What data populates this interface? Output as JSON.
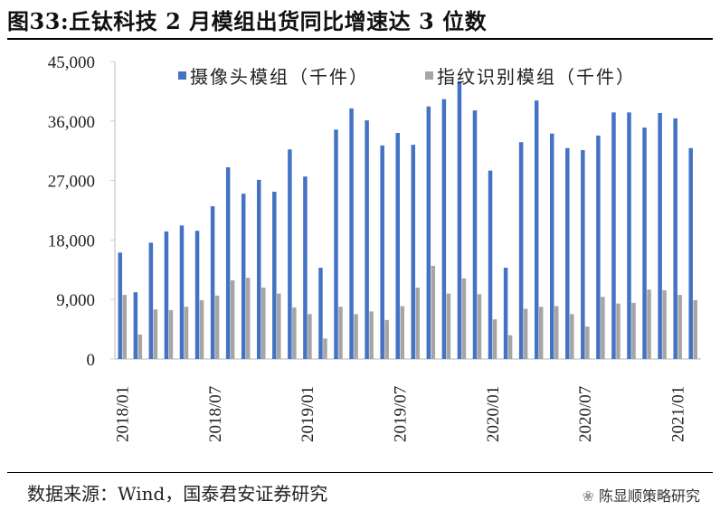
{
  "title": "图33:丘钛科技 2 月模组出货同比增速达 3 位数",
  "source": "数据来源：Wind，国泰君安证券研究",
  "watermark": "陈显顺策略研究",
  "chart_data": {
    "type": "bar",
    "title": "",
    "xlabel": "",
    "ylabel": "",
    "ylim": [
      0,
      45000
    ],
    "yticks": [
      "0",
      "9,000",
      "18,000",
      "27,000",
      "36,000",
      "45,000"
    ],
    "ytick_values": [
      0,
      9000,
      18000,
      27000,
      36000,
      45000
    ],
    "xtick_labels": [
      "2018/01",
      "2018/07",
      "2019/01",
      "2019/07",
      "2020/01",
      "2020/07",
      "2021/01"
    ],
    "legend_position": "top",
    "categories": [
      "2018/01",
      "2018/02",
      "2018/03",
      "2018/04",
      "2018/05",
      "2018/06",
      "2018/07",
      "2018/08",
      "2018/09",
      "2018/10",
      "2018/11",
      "2018/12",
      "2019/01",
      "2019/02",
      "2019/03",
      "2019/04",
      "2019/05",
      "2019/06",
      "2019/07",
      "2019/08",
      "2019/09",
      "2019/10",
      "2019/11",
      "2019/12",
      "2020/01",
      "2020/02",
      "2020/03",
      "2020/04",
      "2020/05",
      "2020/06",
      "2020/07",
      "2020/08",
      "2020/09",
      "2020/10",
      "2020/11",
      "2020/12",
      "2021/01",
      "2021/02"
    ],
    "series": [
      {
        "name": "摄像头模组（千件）",
        "color": "#4472C4",
        "values": [
          16100,
          10100,
          17600,
          19300,
          20200,
          19400,
          23100,
          29000,
          25000,
          27100,
          25300,
          31700,
          27600,
          13800,
          34700,
          37900,
          36100,
          32300,
          34200,
          32400,
          38200,
          39300,
          42000,
          37600,
          28500,
          13800,
          32800,
          39100,
          34100,
          31900,
          31600,
          33800,
          37300,
          37300,
          35000,
          37200,
          36400,
          31900
        ]
      },
      {
        "name": "指纹识别模组（千件）",
        "color": "#A5A5A5",
        "values": [
          9700,
          3700,
          7500,
          7400,
          7900,
          8900,
          9600,
          11900,
          12300,
          10800,
          9900,
          7800,
          6800,
          3100,
          7900,
          6800,
          7200,
          5900,
          8000,
          10800,
          14100,
          9900,
          12200,
          9800,
          6000,
          3600,
          7600,
          7900,
          8000,
          6800,
          4900,
          9400,
          8400,
          8500,
          10500,
          10400,
          9700,
          8900
        ]
      }
    ]
  }
}
